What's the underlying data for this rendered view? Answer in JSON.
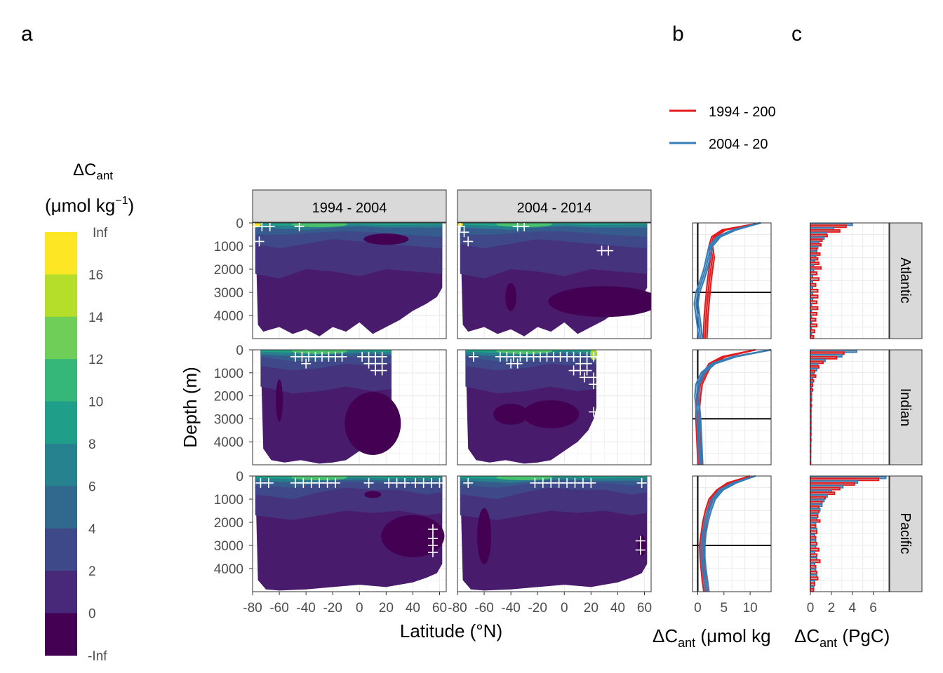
{
  "panel_letters": [
    "a",
    "b",
    "c"
  ],
  "legend": {
    "title_main": "ΔC",
    "title_sub": "ant",
    "unit_pre": "(μmol kg",
    "unit_sup": "−1",
    "unit_post": ")",
    "bins": [
      {
        "label": "Inf",
        "color": "#fde725"
      },
      {
        "label": "16",
        "color": "#b5de2b"
      },
      {
        "label": "14",
        "color": "#6ece58"
      },
      {
        "label": "12",
        "color": "#35b779"
      },
      {
        "label": "10",
        "color": "#1f9e89"
      },
      {
        "label": "8",
        "color": "#26828e"
      },
      {
        "label": "6",
        "color": "#31688e"
      },
      {
        "label": "4",
        "color": "#3e4989"
      },
      {
        "label": "2",
        "color": "#482878"
      },
      {
        "label": "0",
        "color": "#440154"
      },
      {
        "label": "-Inf",
        "color": null
      }
    ]
  },
  "line_legend": [
    {
      "label": "1994 - 200",
      "color": "#e41a1c"
    },
    {
      "label": "2004 - 20",
      "color": "#377eb8"
    }
  ],
  "strips": {
    "periods": [
      "1994 - 2004",
      "2004 - 2014"
    ],
    "basins": [
      "Atlantic",
      "Indian",
      "Pacific"
    ]
  },
  "axes": {
    "a": {
      "xlabel": "Latitude (°N)",
      "ylabel": "Depth (m)",
      "xticks": [
        "-80",
        "-60",
        "-40",
        "-20",
        "0",
        "20",
        "40",
        "60"
      ],
      "xtick_values": [
        -80,
        -60,
        -40,
        -20,
        0,
        20,
        40,
        60
      ],
      "yticks": [
        "0",
        "1000",
        "2000",
        "3000",
        "4000"
      ],
      "ytick_values": [
        0,
        1000,
        2000,
        3000,
        4000
      ],
      "xlim": [
        -80,
        65
      ],
      "ylim": [
        5000,
        0
      ]
    },
    "b": {
      "xlabel_pre": "ΔC",
      "xlabel_sub": "ant",
      "xlabel_post": " (μmol kg",
      "xticks": [
        "0",
        "5",
        "10"
      ],
      "xtick_values": [
        0,
        5,
        10
      ],
      "xlim": [
        -1,
        14
      ],
      "ref_depth": 3000
    },
    "c": {
      "xlabel_pre": "ΔC",
      "xlabel_sub": "ant",
      "xlabel_post": " (PgC)",
      "xticks": [
        "0",
        "2",
        "4",
        "6"
      ],
      "xtick_values": [
        0,
        2,
        4,
        6
      ],
      "xlim": [
        0,
        7.5
      ]
    }
  },
  "chart_data": [
    {
      "type": "heatmap",
      "panel": "a",
      "description_of_axes": "latitude vs depth sections of ΔCant by basin and decade",
      "surface_max_approx": {
        "Atlantic": {
          "1994 - 2004": 16,
          "2004 - 2014": 14
        },
        "Indian": {
          "1994 - 2004": 12,
          "2004 - 2014": 16
        },
        "Pacific": {
          "1994 - 2004": 12,
          "2004 - 2014": 12
        }
      },
      "deep_value_approx": {
        "Atlantic": {
          "1994 - 2004": 1,
          "2004 - 2014": 0
        },
        "Indian": {
          "1994 - 2004": 0,
          "2004 - 2014": 0
        },
        "Pacific": {
          "1994 - 2004": 1,
          "2004 - 2014": 1
        }
      }
    },
    {
      "type": "line",
      "panel": "b",
      "series": [
        {
          "name": "1994 - 200",
          "color": "#e41a1c",
          "Atlantic": {
            "depth": [
              0,
              300,
              600,
              1000,
              1500,
              2000,
              2500,
              3000,
              3500,
              4000,
              4500,
              5000
            ],
            "value": [
              12,
              5,
              3,
              2.5,
              2.8,
              2.5,
              2.2,
              2,
              1.8,
              1.6,
              1.5,
              1.4
            ]
          },
          "Indian": {
            "depth": [
              0,
              300,
              600,
              1000,
              1500,
              2000,
              2500,
              3000,
              3500,
              4000,
              4500,
              5000
            ],
            "value": [
              11,
              5,
              2.5,
              1.5,
              0.5,
              0.2,
              0,
              0,
              0.1,
              0.2,
              0.3,
              0.4
            ]
          },
          "Pacific": {
            "depth": [
              0,
              300,
              600,
              1000,
              1500,
              2000,
              2500,
              3000,
              3500,
              4000,
              4500,
              5000
            ],
            "value": [
              10,
              6,
              4,
              2.5,
              1.8,
              1.3,
              1.0,
              0.7,
              0.8,
              1.0,
              1.2,
              1.5
            ]
          }
        },
        {
          "name": "2004 - 20",
          "color": "#377eb8",
          "Atlantic": {
            "depth": [
              0,
              300,
              600,
              1000,
              1500,
              2000,
              2500,
              3000,
              3500,
              4000,
              4500,
              5000
            ],
            "value": [
              12,
              7,
              4,
              2.5,
              2,
              1.5,
              0.8,
              0,
              -0.3,
              0,
              0.3,
              0.5
            ]
          },
          "Indian": {
            "depth": [
              0,
              300,
              600,
              1000,
              1500,
              2000,
              2500,
              3000,
              3500,
              4000,
              4500,
              5000
            ],
            "value": [
              14,
              7,
              3,
              1,
              0,
              -0.2,
              0,
              0.2,
              0.3,
              0.4,
              0.5,
              0.6
            ]
          },
          "Pacific": {
            "depth": [
              0,
              300,
              600,
              1000,
              1500,
              2000,
              2500,
              3000,
              3500,
              4000,
              4500,
              5000
            ],
            "value": [
              11,
              7,
              4.5,
              3,
              2.2,
              1.6,
              1.2,
              1,
              1,
              1.2,
              1.5,
              1.8
            ]
          }
        }
      ]
    },
    {
      "type": "bar",
      "panel": "c",
      "depth_bins": [
        0,
        200,
        400,
        600,
        800,
        1000,
        1200,
        1400,
        1600,
        1800,
        2000,
        2250,
        2500,
        2750,
        3000,
        3250,
        3500,
        3750,
        4000,
        4250,
        4500,
        4750,
        5000
      ],
      "series": [
        {
          "name": "1994 - 200",
          "color": "#e41a1c",
          "Atlantic": [
            3.4,
            2.8,
            1.6,
            1.1,
            1.0,
            0.6,
            0.9,
            0.7,
            0.8,
            1.0,
            0.6,
            0.8,
            0.5,
            0.7,
            0.7,
            0.6,
            0.7,
            0.6,
            0.5,
            0.6,
            0.4,
            0.3
          ],
          "Indian": [
            3.2,
            2.5,
            1.2,
            0.8,
            0.4,
            0.5,
            0.3,
            0.2,
            0.2,
            0.1,
            0.1,
            0.1,
            0.05,
            0.05,
            0.05,
            0.05,
            0.05,
            0.05,
            0.03,
            0.03,
            0.02,
            0.02
          ],
          "Pacific": [
            6.5,
            4.2,
            2.8,
            2.3,
            1.4,
            1.1,
            0.8,
            0.8,
            0.7,
            0.9,
            0.5,
            0.6,
            0.5,
            0.6,
            0.8,
            0.6,
            0.9,
            0.5,
            0.6,
            0.7,
            0.4,
            0.3
          ]
        },
        {
          "name": "2004 - 20",
          "color": "#377eb8",
          "Atlantic": [
            4.0,
            2.2,
            1.5,
            1.3,
            0.8,
            0.7,
            0.6,
            0.5,
            0.4,
            0.3,
            0.3,
            0.2,
            0.2,
            0.2,
            0.2,
            0.2,
            0.1,
            0.1,
            0.1,
            0.1,
            0.1,
            0.1
          ],
          "Indian": [
            4.4,
            3.0,
            1.4,
            0.7,
            0.6,
            0.3,
            0.2,
            0.2,
            0.1,
            0.1,
            0.1,
            0.05,
            0.05,
            0.05,
            0.05,
            0.05,
            0.05,
            0.03,
            0.03,
            0.03,
            0.02,
            0.02
          ],
          "Pacific": [
            7.2,
            4.5,
            3.1,
            2.0,
            1.6,
            1.3,
            1.1,
            0.9,
            0.7,
            0.6,
            0.5,
            0.6,
            0.4,
            0.5,
            0.5,
            0.4,
            0.6,
            0.4,
            0.5,
            0.6,
            0.4,
            0.3
          ]
        }
      ]
    }
  ]
}
